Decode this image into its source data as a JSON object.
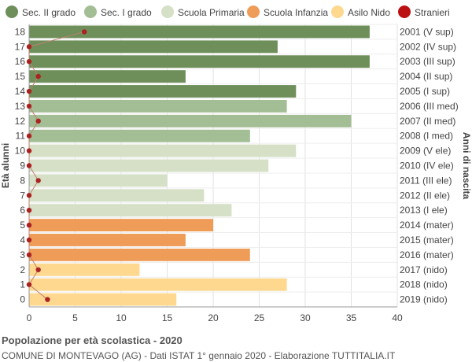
{
  "chart_data": {
    "type": "bar",
    "orientation": "horizontal",
    "ylabel_left": "Età alunni",
    "ylabel_right": "Anni di nascita",
    "xlim": [
      0,
      40
    ],
    "xticks": [
      0,
      5,
      10,
      15,
      20,
      25,
      30,
      35,
      40
    ],
    "grid": true,
    "legend_position": "top",
    "legend": [
      {
        "name": "Sec. II grado",
        "color": "#6e8f5a"
      },
      {
        "name": "Sec. I grado",
        "color": "#a3bd94"
      },
      {
        "name": "Scuola Primaria",
        "color": "#d5e0c6"
      },
      {
        "name": "Scuola Infanzia",
        "color": "#ee9c58"
      },
      {
        "name": "Asilo Nido",
        "color": "#fdd88e"
      },
      {
        "name": "Stranieri",
        "color": "#bb1111"
      }
    ],
    "rows": [
      {
        "age": "18",
        "birth": "2001 (V sup)",
        "value": 37,
        "stranieri": 6,
        "group": 0
      },
      {
        "age": "17",
        "birth": "2002 (IV sup)",
        "value": 27,
        "stranieri": 0,
        "group": 0
      },
      {
        "age": "16",
        "birth": "2003 (III sup)",
        "value": 37,
        "stranieri": 0,
        "group": 0
      },
      {
        "age": "15",
        "birth": "2004 (II sup)",
        "value": 17,
        "stranieri": 1,
        "group": 0
      },
      {
        "age": "14",
        "birth": "2005 (I sup)",
        "value": 29,
        "stranieri": 0,
        "group": 0
      },
      {
        "age": "13",
        "birth": "2006 (III med)",
        "value": 28,
        "stranieri": 0,
        "group": 1
      },
      {
        "age": "12",
        "birth": "2007 (II med)",
        "value": 35,
        "stranieri": 1,
        "group": 1
      },
      {
        "age": "11",
        "birth": "2008 (I med)",
        "value": 24,
        "stranieri": 0,
        "group": 1
      },
      {
        "age": "10",
        "birth": "2009 (V ele)",
        "value": 29,
        "stranieri": 0,
        "group": 2
      },
      {
        "age": "9",
        "birth": "2010 (IV ele)",
        "value": 26,
        "stranieri": 0,
        "group": 2
      },
      {
        "age": "8",
        "birth": "2011 (III ele)",
        "value": 15,
        "stranieri": 1,
        "group": 2
      },
      {
        "age": "7",
        "birth": "2012 (II ele)",
        "value": 19,
        "stranieri": 0,
        "group": 2
      },
      {
        "age": "6",
        "birth": "2013 (I ele)",
        "value": 22,
        "stranieri": 0,
        "group": 2
      },
      {
        "age": "5",
        "birth": "2014 (mater)",
        "value": 20,
        "stranieri": 0,
        "group": 3
      },
      {
        "age": "4",
        "birth": "2015 (mater)",
        "value": 17,
        "stranieri": 0,
        "group": 3
      },
      {
        "age": "3",
        "birth": "2016 (mater)",
        "value": 24,
        "stranieri": 0,
        "group": 3
      },
      {
        "age": "2",
        "birth": "2017 (nido)",
        "value": 12,
        "stranieri": 1,
        "group": 4
      },
      {
        "age": "1",
        "birth": "2018 (nido)",
        "value": 28,
        "stranieri": 0,
        "group": 4
      },
      {
        "age": "0",
        "birth": "2019 (nido)",
        "value": 16,
        "stranieri": 2,
        "group": 4
      }
    ],
    "stranieri_color": "#aa2222",
    "stranieri_line_color": "#c08070"
  },
  "footer": {
    "title": "Popolazione per età scolastica - 2020",
    "subtitle": "COMUNE DI MONTEVAGO (AG) - Dati ISTAT 1° gennaio 2020 - Elaborazione TUTTITALIA.IT"
  }
}
